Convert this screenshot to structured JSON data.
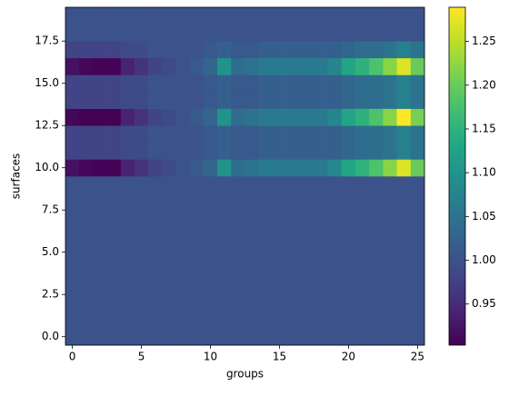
{
  "chart_data": {
    "type": "heatmap",
    "xlabel": "groups",
    "ylabel": "surfaces",
    "colormap": "viridis",
    "xlim": [
      -0.5,
      25.5
    ],
    "ylim": [
      -0.5,
      19.5
    ],
    "xticks": [
      0,
      5,
      10,
      15,
      20,
      25
    ],
    "yticks": [
      {
        "value": 0,
        "label": "0.0"
      },
      2.5,
      {
        "value": 5,
        "label": "5.0"
      },
      7.5,
      {
        "value": 10,
        "label": "10.0"
      },
      12.5,
      {
        "value": 15,
        "label": "15.0"
      },
      17.5
    ],
    "clim": [
      0.903,
      1.289
    ],
    "cticks": [
      0.95,
      {
        "value": 1,
        "label": "1.00"
      },
      1.05,
      {
        "value": 1.1,
        "label": "1.10"
      },
      1.15,
      {
        "value": 1.2,
        "label": "1.20"
      },
      1.25
    ],
    "values": [
      [
        1,
        1,
        1,
        1,
        1,
        1,
        1,
        1,
        1,
        1,
        1,
        1,
        1,
        1,
        1,
        1,
        1,
        1,
        1,
        1,
        1,
        1,
        1,
        1,
        1,
        1
      ],
      [
        1,
        1,
        1,
        1,
        1,
        1,
        1,
        1,
        1,
        1,
        1,
        1,
        1,
        1,
        1,
        1,
        1,
        1,
        1,
        1,
        1,
        1,
        1,
        1,
        1,
        1
      ],
      [
        1,
        1,
        1,
        1,
        1,
        1,
        1,
        1,
        1,
        1,
        1,
        1,
        1,
        1,
        1,
        1,
        1,
        1,
        1,
        1,
        1,
        1,
        1,
        1,
        1,
        1
      ],
      [
        1,
        1,
        1,
        1,
        1,
        1,
        1,
        1,
        1,
        1,
        1,
        1,
        1,
        1,
        1,
        1,
        1,
        1,
        1,
        1,
        1,
        1,
        1,
        1,
        1,
        1
      ],
      [
        1,
        1,
        1,
        1,
        1,
        1,
        1,
        1,
        1,
        1,
        1,
        1,
        1,
        1,
        1,
        1,
        1,
        1,
        1,
        1,
        1,
        1,
        1,
        1,
        1,
        1
      ],
      [
        1,
        1,
        1,
        1,
        1,
        1,
        1,
        1,
        1,
        1,
        1,
        1,
        1,
        1,
        1,
        1,
        1,
        1,
        1,
        1,
        1,
        1,
        1,
        1,
        1,
        1
      ],
      [
        1,
        1,
        1,
        1,
        1,
        1,
        1,
        1,
        1,
        1,
        1,
        1,
        1,
        1,
        1,
        1,
        1,
        1,
        1,
        1,
        1,
        1,
        1,
        1,
        1,
        1
      ],
      [
        1,
        1,
        1,
        1,
        1,
        1,
        1,
        1,
        1,
        1,
        1,
        1,
        1,
        1,
        1,
        1,
        1,
        1,
        1,
        1,
        1,
        1,
        1,
        1,
        1,
        1
      ],
      [
        1,
        1,
        1,
        1,
        1,
        1,
        1,
        1,
        1,
        1,
        1,
        1,
        1,
        1,
        1,
        1,
        1,
        1,
        1,
        1,
        1,
        1,
        1,
        1,
        1,
        1
      ],
      [
        1,
        1,
        1,
        1,
        1,
        1,
        1,
        1,
        1,
        1,
        1,
        1,
        1,
        1,
        1,
        1,
        1,
        1,
        1,
        1,
        1,
        1,
        1,
        1,
        1,
        1
      ],
      [
        0.92,
        0.91,
        0.905,
        0.905,
        0.94,
        0.96,
        0.98,
        0.99,
        1.0,
        1.01,
        1.03,
        1.1,
        1.04,
        1.05,
        1.06,
        1.06,
        1.06,
        1.06,
        1.06,
        1.08,
        1.13,
        1.15,
        1.18,
        1.22,
        1.27,
        1.2
      ],
      [
        0.98,
        0.98,
        0.98,
        0.98,
        0.99,
        0.99,
        1.0,
        1.0,
        1.0,
        1.0,
        1.01,
        1.02,
        1.01,
        1.01,
        1.02,
        1.02,
        1.02,
        1.02,
        1.02,
        1.02,
        1.03,
        1.04,
        1.04,
        1.05,
        1.07,
        1.05
      ],
      [
        0.98,
        0.98,
        0.98,
        0.98,
        0.99,
        0.99,
        1.0,
        1.0,
        1.0,
        1.0,
        1.01,
        1.02,
        1.01,
        1.01,
        1.02,
        1.02,
        1.02,
        1.02,
        1.02,
        1.02,
        1.03,
        1.04,
        1.04,
        1.05,
        1.07,
        1.05
      ],
      [
        0.91,
        0.903,
        0.903,
        0.903,
        0.94,
        0.96,
        0.98,
        0.99,
        1.0,
        1.01,
        1.03,
        1.1,
        1.04,
        1.05,
        1.06,
        1.06,
        1.06,
        1.06,
        1.06,
        1.08,
        1.13,
        1.15,
        1.18,
        1.22,
        1.289,
        1.21
      ],
      [
        0.98,
        0.98,
        0.98,
        0.98,
        0.99,
        0.99,
        1.0,
        1.0,
        1.0,
        1.0,
        1.01,
        1.02,
        1.01,
        1.01,
        1.02,
        1.02,
        1.02,
        1.02,
        1.02,
        1.02,
        1.03,
        1.04,
        1.04,
        1.05,
        1.07,
        1.05
      ],
      [
        0.98,
        0.98,
        0.98,
        0.98,
        0.99,
        0.99,
        1.0,
        1.0,
        1.0,
        1.0,
        1.01,
        1.02,
        1.01,
        1.01,
        1.02,
        1.02,
        1.02,
        1.02,
        1.02,
        1.02,
        1.03,
        1.04,
        1.04,
        1.05,
        1.07,
        1.05
      ],
      [
        0.92,
        0.91,
        0.905,
        0.905,
        0.94,
        0.96,
        0.98,
        0.99,
        1.0,
        1.01,
        1.03,
        1.1,
        1.04,
        1.05,
        1.06,
        1.06,
        1.06,
        1.06,
        1.06,
        1.08,
        1.13,
        1.15,
        1.18,
        1.22,
        1.27,
        1.2
      ],
      [
        0.98,
        0.98,
        0.98,
        0.98,
        0.99,
        0.99,
        1.0,
        1.0,
        1.0,
        1.0,
        1.01,
        1.02,
        1.01,
        1.01,
        1.02,
        1.02,
        1.02,
        1.02,
        1.02,
        1.02,
        1.03,
        1.04,
        1.04,
        1.05,
        1.07,
        1.05
      ],
      [
        1,
        1,
        1,
        1,
        1,
        1,
        1,
        1,
        1,
        1,
        1,
        1,
        1,
        1,
        1,
        1,
        1,
        1,
        1,
        1,
        1,
        1,
        1,
        1,
        1,
        1
      ],
      [
        1,
        1,
        1,
        1,
        1,
        1,
        1,
        1,
        1,
        1,
        1,
        1,
        1,
        1,
        1,
        1,
        1,
        1,
        1,
        1,
        1,
        1,
        1,
        1,
        1,
        1
      ]
    ]
  }
}
